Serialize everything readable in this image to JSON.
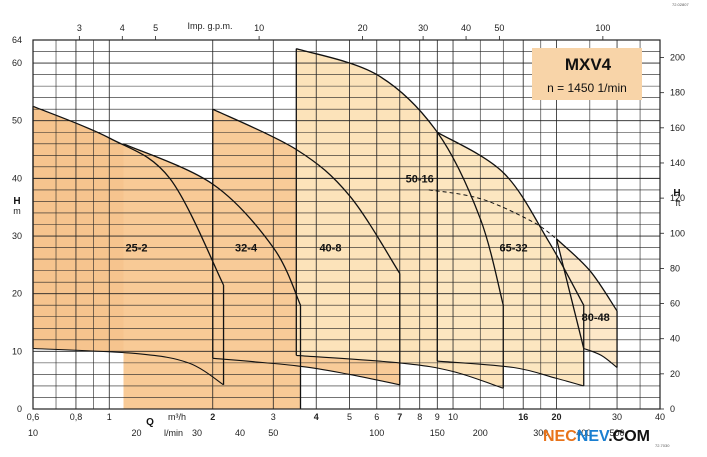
{
  "chart_data": {
    "type": "line",
    "title": "MXV4",
    "subtitle": "n = 1450 1/min",
    "ylabel_left": "H",
    "ylabel_left_unit": "m",
    "ylabel_right": "H",
    "ylabel_right_unit": "ft",
    "xlabel": "Q",
    "x_units": [
      "m³/h",
      "l/min"
    ],
    "top_axis_label": "Imp. g.p.m.",
    "xlim_m3h": [
      0.6,
      40
    ],
    "ylim_m": [
      0,
      64
    ],
    "y_ticks_m": [
      0,
      10,
      20,
      30,
      40,
      50,
      60,
      64
    ],
    "y_ticks_ft": [
      0,
      20,
      40,
      60,
      80,
      100,
      120,
      140,
      160,
      180,
      200
    ],
    "x_ticks_m3h": [
      0.6,
      0.8,
      1,
      2,
      3,
      4,
      5,
      6,
      7,
      8,
      9,
      10,
      16,
      20,
      30,
      40
    ],
    "x_ticks_m3h_bold": [
      2,
      4,
      7,
      16,
      20
    ],
    "x_ticks_lmin": [
      10,
      20,
      30,
      40,
      50,
      100,
      150,
      200,
      300,
      400,
      500
    ],
    "x_ticks_gpm": [
      3,
      4,
      5,
      10,
      20,
      30,
      40,
      50,
      100
    ],
    "series": [
      {
        "name": "25-2",
        "min_q": 0.6,
        "max_q": 2.15,
        "h_top": [
          [
            0.6,
            52.5
          ],
          [
            1,
            47
          ],
          [
            1.5,
            40
          ],
          [
            2.15,
            21.5
          ]
        ],
        "h_bottom": [
          [
            0.6,
            10.5
          ],
          [
            1.2,
            9.6
          ],
          [
            1.7,
            8
          ],
          [
            2.15,
            4.2
          ]
        ],
        "fill": "#f6c48e"
      },
      {
        "name": "32-4",
        "min_q": 1.1,
        "max_q": 3.6,
        "h_top": [
          [
            1.1,
            46
          ],
          [
            2,
            39
          ],
          [
            3,
            28
          ],
          [
            3.6,
            18
          ]
        ],
        "h_bottom": [],
        "fill": "#f8ca96"
      },
      {
        "name": "40-8",
        "min_q": 2.0,
        "max_q": 7.0,
        "h_top": [
          [
            2,
            52
          ],
          [
            3.5,
            45
          ],
          [
            5,
            37
          ],
          [
            7,
            23.5
          ]
        ],
        "h_bottom": [
          [
            2,
            8.8
          ],
          [
            3.5,
            7.5
          ],
          [
            5,
            6
          ],
          [
            7,
            4.2
          ]
        ],
        "fill": "#f8cb98"
      },
      {
        "name": "50-16",
        "min_q": 3.5,
        "max_q": 14,
        "h_top": [
          [
            3.5,
            62.5
          ],
          [
            6,
            58
          ],
          [
            9,
            48
          ],
          [
            12,
            33
          ],
          [
            14,
            18
          ]
        ],
        "h_bottom": [
          [
            3.5,
            9.3
          ],
          [
            7,
            8
          ],
          [
            10,
            6.5
          ],
          [
            14,
            3.6
          ]
        ],
        "fill": "#fce3ba"
      },
      {
        "name": "65-32",
        "min_q": 9,
        "max_q": 24,
        "h_top": [
          [
            9,
            48
          ],
          [
            14,
            41
          ],
          [
            19,
            29
          ],
          [
            24,
            18
          ]
        ],
        "h_bottom": [
          [
            9,
            8.3
          ],
          [
            15,
            7.2
          ],
          [
            20,
            5.3
          ],
          [
            24,
            4
          ]
        ],
        "fill": "#fce6c0"
      },
      {
        "name": "80-48",
        "min_q": 20,
        "max_q": 30,
        "h_top": [
          [
            20,
            29.5
          ],
          [
            25,
            24
          ],
          [
            30,
            17
          ]
        ],
        "h_bottom": [
          [
            24,
            10.5
          ],
          [
            27,
            9.3
          ],
          [
            30,
            7.2
          ]
        ],
        "fill": "#fde8c8"
      }
    ],
    "dashed_curve": [
      [
        8.5,
        38
      ],
      [
        12,
        36.5
      ],
      [
        17,
        32.5
      ],
      [
        20,
        29.5
      ]
    ]
  },
  "brand_logo": "NECNEV.COM",
  "code_top": "72.02807",
  "code_bottom": "72.7030"
}
